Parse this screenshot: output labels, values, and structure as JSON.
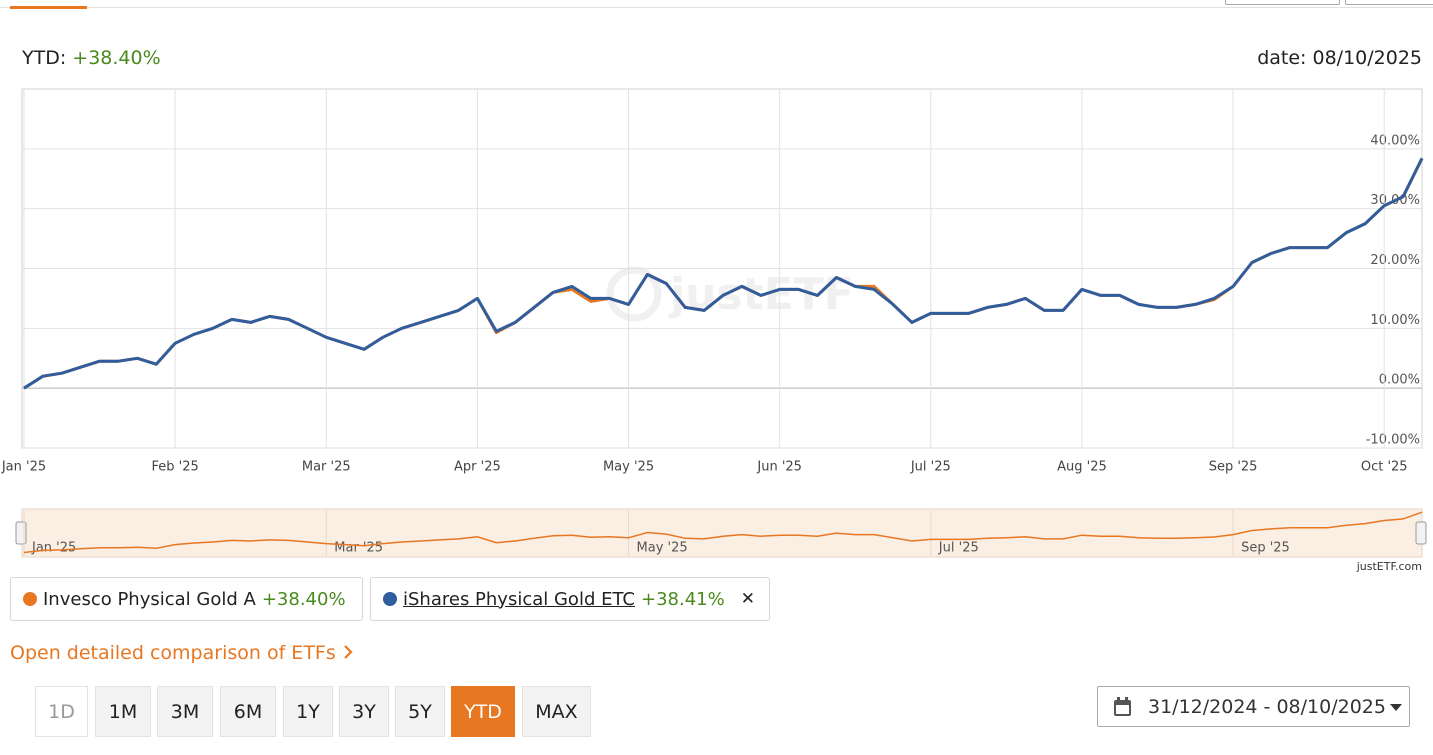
{
  "header": {
    "ytd_label": "YTD:",
    "ytd_value": "+38.40%",
    "date": "date: 08/10/2025"
  },
  "chart_data": {
    "type": "line",
    "categories": [
      "Jan '25",
      null,
      null,
      null,
      null,
      null,
      null,
      null,
      "Feb '25",
      null,
      null,
      null,
      null,
      null,
      null,
      null,
      "Mar '25",
      null,
      null,
      null,
      null,
      null,
      null,
      null,
      "Apr '25",
      null,
      null,
      null,
      null,
      null,
      null,
      null,
      "May '25",
      null,
      null,
      null,
      null,
      null,
      null,
      null,
      "Jun '25",
      null,
      null,
      null,
      null,
      null,
      null,
      null,
      "Jul '25",
      null,
      null,
      null,
      null,
      null,
      null,
      null,
      "Aug '25",
      null,
      null,
      null,
      null,
      null,
      null,
      null,
      "Sep '25",
      null,
      null,
      null,
      null,
      null,
      null,
      null,
      "Oct '25",
      null,
      null
    ],
    "series": [
      {
        "name": "Invesco Physical Gold A",
        "color": "#e87722",
        "values": [
          0,
          2,
          2.5,
          3.5,
          4.5,
          4.5,
          5,
          4,
          7.5,
          9,
          10,
          11.5,
          11,
          12,
          11.5,
          10,
          8.5,
          7.5,
          6.5,
          8.5,
          10,
          11,
          12,
          13,
          15,
          9.3,
          11,
          13.5,
          16,
          16.5,
          14.5,
          15,
          14,
          19,
          17.5,
          13.5,
          13,
          15.5,
          17,
          15.5,
          16.5,
          16.5,
          15.5,
          18.5,
          17,
          17,
          14,
          11,
          12.5,
          12.5,
          12.5,
          13.5,
          14,
          15,
          13,
          13,
          16.5,
          15.5,
          15.5,
          14,
          13.5,
          13.5,
          14,
          14.8,
          17,
          21,
          22.5,
          23.5,
          23.5,
          23.5,
          26,
          27.5,
          30.5,
          32,
          38.4
        ]
      },
      {
        "name": "iShares Physical Gold ETC",
        "color": "#2f5d9e",
        "values": [
          0,
          2,
          2.5,
          3.5,
          4.5,
          4.5,
          5,
          4,
          7.5,
          9,
          10,
          11.5,
          11,
          12,
          11.5,
          10,
          8.5,
          7.5,
          6.5,
          8.5,
          10,
          11,
          12,
          13,
          15,
          9.5,
          11,
          13.5,
          16,
          17,
          15,
          15,
          14,
          19,
          17.5,
          13.5,
          13,
          15.5,
          17,
          15.5,
          16.5,
          16.5,
          15.5,
          18.5,
          17,
          16.5,
          14,
          11,
          12.5,
          12.5,
          12.5,
          13.5,
          14,
          15,
          13,
          13,
          16.5,
          15.5,
          15.5,
          14,
          13.5,
          13.5,
          14,
          15,
          17,
          21,
          22.5,
          23.5,
          23.5,
          23.5,
          26,
          27.5,
          30.5,
          32,
          38.41
        ]
      }
    ],
    "ylim": [
      -10,
      50
    ],
    "yticks": [
      {
        "value": -10,
        "label": "-10.00%"
      },
      {
        "value": 0,
        "label": "0.00%"
      },
      {
        "value": 10,
        "label": "10.00%"
      },
      {
        "value": 20,
        "label": "20.00%"
      },
      {
        "value": 30,
        "label": "30.00%"
      },
      {
        "value": 40,
        "label": "40.00%"
      }
    ],
    "grid": true,
    "watermark": "justETF",
    "credit": "justETF.com"
  },
  "legend_returns": [
    "+38.40%",
    "+38.41%"
  ],
  "close_icon": "✕",
  "link": "Open detailed comparison of ETFs",
  "range_buttons": [
    "1D",
    "1M",
    "3M",
    "6M",
    "1Y",
    "3Y",
    "5Y",
    "YTD",
    "MAX"
  ],
  "active_range": "YTD",
  "date_range": "31/12/2024 - 08/10/2025"
}
